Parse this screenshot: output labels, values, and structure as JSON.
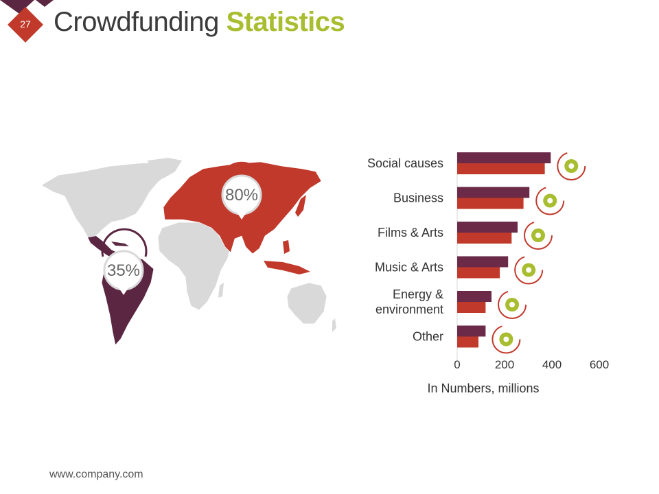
{
  "slide": {
    "number": "27",
    "title_main": "Crowdfunding ",
    "title_accent": "Statistics",
    "footer": "www.company.com"
  },
  "map": {
    "callouts": [
      {
        "label": "80%",
        "region": "Europe & Asia",
        "value": 80
      },
      {
        "label": "35%",
        "region": "Latin America",
        "value": 35
      }
    ],
    "colors": {
      "land": "#d9d9d9",
      "eurasia": "#c0392b",
      "latam": "#5b2642",
      "border": "#ffffff"
    }
  },
  "chart_data": {
    "type": "bar",
    "orientation": "horizontal",
    "categories": [
      "Social causes",
      "Business",
      "Films & Arts",
      "Music & Arts",
      "Energy & environment",
      "Other"
    ],
    "category_lines": [
      [
        "Social causes"
      ],
      [
        "Business"
      ],
      [
        "Films & Arts"
      ],
      [
        "Music & Arts"
      ],
      [
        "Energy &",
        "environment"
      ],
      [
        "Other"
      ]
    ],
    "series": [
      {
        "color": "#6b2a47",
        "values": [
          395,
          305,
          255,
          215,
          145,
          120
        ]
      },
      {
        "color": "#c0392b",
        "values": [
          370,
          280,
          230,
          180,
          120,
          90
        ]
      }
    ],
    "xlabel": "In Numbers, millions",
    "xlim": [
      0,
      600
    ],
    "xticks": [
      0,
      200,
      400,
      600
    ],
    "grid": false,
    "legend": "none",
    "icons": [
      "heart-hand-icon",
      "briefcase-icon",
      "film-reel-icon",
      "microphone-icon",
      "light-bulb-icon",
      "globe-icon"
    ]
  }
}
